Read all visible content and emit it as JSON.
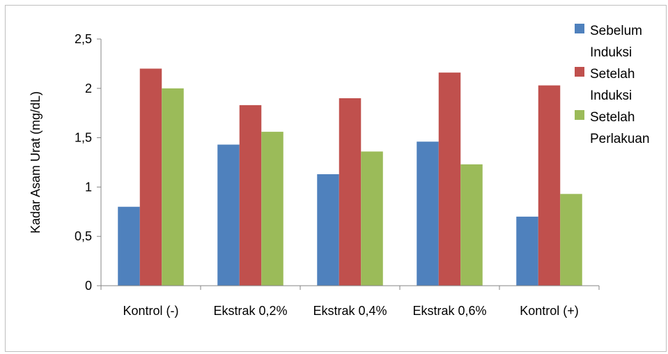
{
  "chart_data": {
    "type": "bar",
    "title": "",
    "xlabel": "",
    "ylabel": "Kadar Asam Urat (mg/dL)",
    "ylim": [
      0,
      2.5
    ],
    "yticks": [
      0,
      0.5,
      1,
      1.5,
      2,
      2.5
    ],
    "ytick_labels": [
      "0",
      "0,5",
      "1",
      "1,5",
      "2",
      "2,5"
    ],
    "categories": [
      "Kontrol (-)",
      "Ekstrak 0,2%",
      "Ekstrak 0,4%",
      "Ekstrak 0,6%",
      "Kontrol (+)"
    ],
    "series": [
      {
        "name": "Sebelum Induksi",
        "legend_lines": [
          "Sebelum",
          "Induksi"
        ],
        "color": "#4f81bd",
        "values": [
          0.8,
          1.43,
          1.13,
          1.46,
          0.7
        ]
      },
      {
        "name": "Setelah Induksi",
        "legend_lines": [
          "Setelah",
          "Induksi"
        ],
        "color": "#c0504d",
        "values": [
          2.2,
          1.83,
          1.9,
          2.16,
          2.03
        ]
      },
      {
        "name": "Setelah Perlakuan",
        "legend_lines": [
          "Setelah",
          "Perlakuan"
        ],
        "color": "#9bbb59",
        "values": [
          2.0,
          1.56,
          1.36,
          1.23,
          0.93
        ]
      }
    ],
    "grid": false,
    "legend_position": "right"
  }
}
